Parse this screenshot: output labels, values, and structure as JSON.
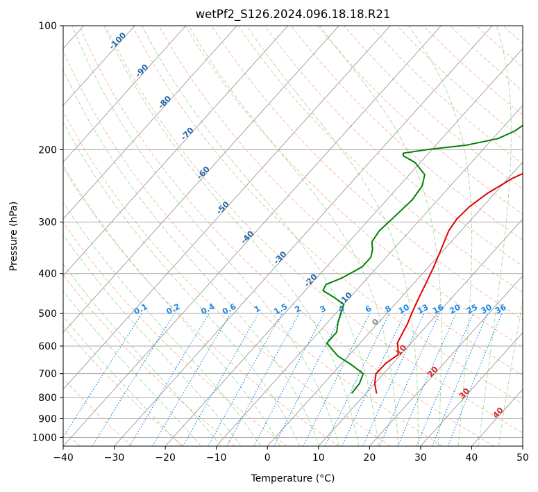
{
  "chart_data": {
    "type": "line",
    "title": "wetPf2_S126.2024.096.18.18.R21",
    "xlabel": "Temperature (°C)",
    "ylabel": "Pressure (hPa)",
    "xlim": [
      -40,
      50
    ],
    "ylim": [
      1050,
      100
    ],
    "y_scale": "log",
    "grid": true,
    "x_ticks": [
      -40,
      -30,
      -20,
      -10,
      0,
      10,
      20,
      30,
      40,
      50
    ],
    "y_ticks": [
      100,
      200,
      300,
      400,
      500,
      600,
      700,
      800,
      900,
      1000
    ],
    "series": [
      {
        "color": "#e00000",
        "points": [
          [
            12.0,
            780
          ],
          [
            10.0,
            740
          ],
          [
            8.5,
            700
          ],
          [
            8.6,
            660
          ],
          [
            9.5,
            630
          ],
          [
            8.5,
            610
          ],
          [
            7.3,
            590
          ],
          [
            6.6,
            560
          ],
          [
            5.9,
            530
          ],
          [
            4.9,
            500
          ],
          [
            3.6,
            460
          ],
          [
            2.3,
            420
          ],
          [
            1.0,
            385
          ],
          [
            -0.6,
            350
          ],
          [
            -2.4,
            315
          ],
          [
            -2.9,
            295
          ],
          [
            -2.6,
            275
          ],
          [
            -1.4,
            255
          ],
          [
            0.8,
            235
          ],
          [
            4.8,
            215
          ],
          [
            9.5,
            200
          ],
          [
            13.0,
            185
          ],
          [
            14.6,
            170
          ],
          [
            16.6,
            155
          ],
          [
            19.5,
            140
          ],
          [
            21.6,
            130
          ],
          [
            22.6,
            122
          ],
          [
            23.1,
            115
          ],
          [
            24.4,
            108
          ],
          [
            26.6,
            100
          ]
        ]
      },
      {
        "color": "#008000",
        "points": [
          [
            7.2,
            780
          ],
          [
            7.0,
            740
          ],
          [
            6.0,
            700
          ],
          [
            2.0,
            665
          ],
          [
            -2.0,
            635
          ],
          [
            -4.0,
            615
          ],
          [
            -6.5,
            590
          ],
          [
            -6.5,
            575
          ],
          [
            -6.5,
            555
          ],
          [
            -8.0,
            525
          ],
          [
            -9.0,
            500
          ],
          [
            -10.0,
            475
          ],
          [
            -13.5,
            455
          ],
          [
            -16.5,
            440
          ],
          [
            -17.0,
            425
          ],
          [
            -15.0,
            410
          ],
          [
            -13.0,
            385
          ],
          [
            -13.0,
            365
          ],
          [
            -14.0,
            350
          ],
          [
            -15.5,
            335
          ],
          [
            -16.0,
            315
          ],
          [
            -15.5,
            290
          ],
          [
            -15.0,
            265
          ],
          [
            -15.5,
            245
          ],
          [
            -17.0,
            230
          ],
          [
            -21.0,
            215
          ],
          [
            -24.5,
            207
          ],
          [
            -25.0,
            204
          ],
          [
            -21.0,
            200
          ],
          [
            -14.0,
            195
          ],
          [
            -9.0,
            188
          ],
          [
            -7.0,
            180
          ],
          [
            -6.0,
            170
          ],
          [
            -5.5,
            163
          ],
          [
            -6.5,
            156
          ],
          [
            -7.0,
            150
          ],
          [
            -5.5,
            142
          ],
          [
            -4.5,
            134
          ],
          [
            -4.0,
            126
          ],
          [
            -4.0,
            120
          ],
          [
            -3.5,
            113
          ],
          [
            -2.0,
            107
          ],
          [
            -0.5,
            103
          ],
          [
            0.0,
            100
          ]
        ]
      }
    ],
    "mixing_ratio_labels": [
      "0.1",
      "0.2",
      "0.4",
      "0.6",
      "1",
      "1.5",
      "2",
      "3",
      "4",
      "6",
      "8",
      "10",
      "13",
      "16",
      "20",
      "25",
      "30",
      "36"
    ],
    "dry_adiabat_labels": [
      "-100",
      "-90",
      "-80",
      "-70",
      "-60",
      "-50",
      "-40",
      "-30",
      "-20",
      "-10"
    ],
    "moist_adiabat_labels": [
      "0",
      "10",
      "20",
      "30",
      "40"
    ],
    "colors": {
      "temperature": "#e00000",
      "dewpoint": "#008000",
      "dry_adiabat": "#f4a582",
      "moist_adiabat": "#7fc97f",
      "mixing_ratio": "#1e88e5",
      "isotherm": "#999999",
      "isobar": "#aaaaaa"
    }
  }
}
